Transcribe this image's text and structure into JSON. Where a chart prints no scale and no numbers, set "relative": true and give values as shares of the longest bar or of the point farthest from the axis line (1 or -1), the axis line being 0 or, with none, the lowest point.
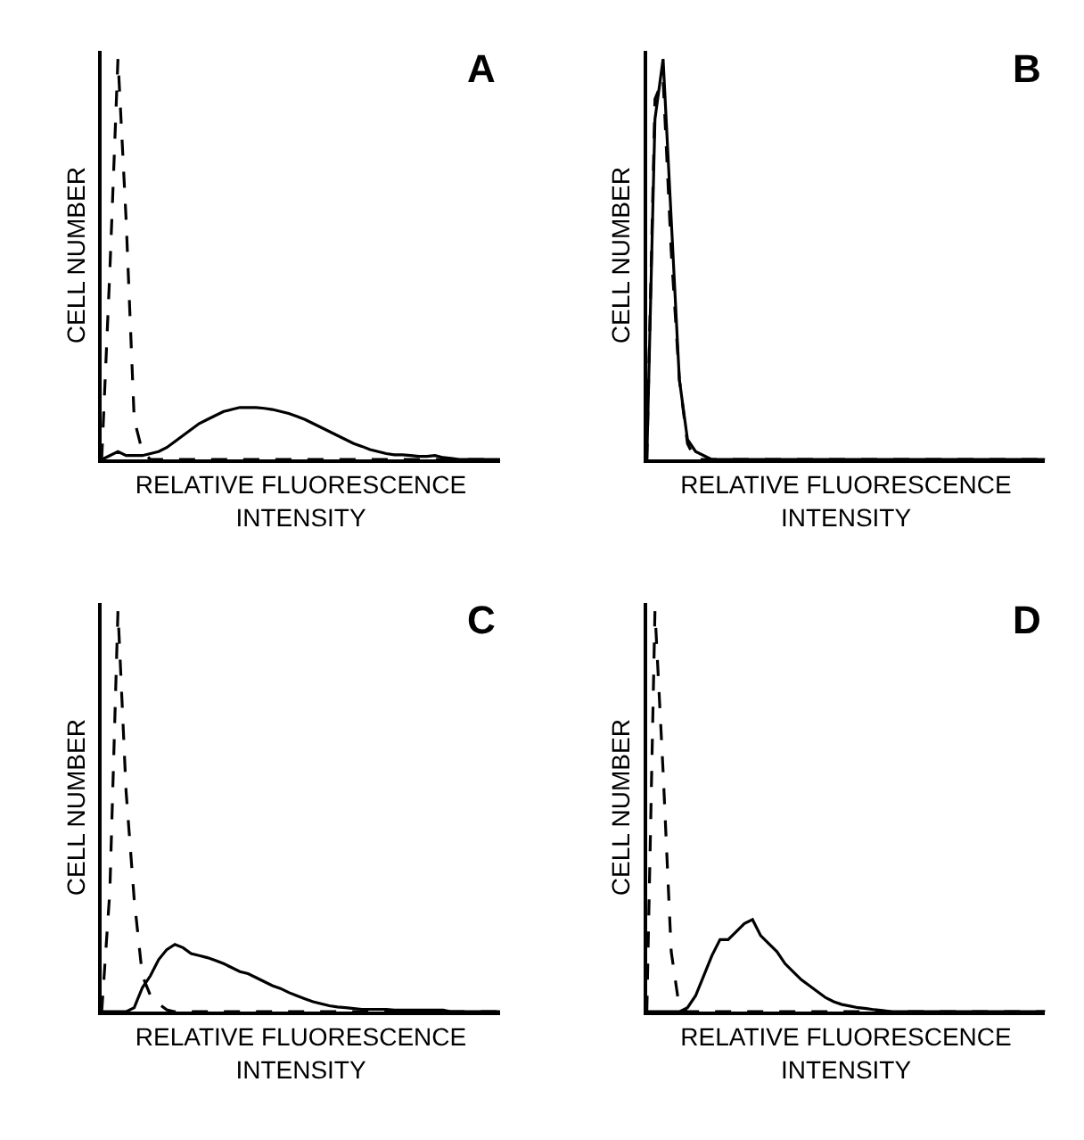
{
  "chart_data": [
    {
      "type": "line",
      "title": "A",
      "xlabel": "RELATIVE FLUORESCENCE\nINTENSITY",
      "ylabel": "CELL NUMBER",
      "relative": true,
      "marker": "none",
      "categories": [
        null,
        null,
        null,
        null,
        null,
        null,
        null,
        null,
        null,
        null,
        null,
        null,
        null,
        null,
        null,
        null,
        null,
        null,
        null,
        null,
        null,
        null,
        null,
        null,
        null,
        null,
        null,
        null,
        null,
        null,
        null,
        null,
        null,
        null,
        null,
        null,
        null,
        null,
        null,
        null,
        null,
        null,
        null,
        null,
        null,
        null,
        null,
        null,
        null,
        null
      ],
      "series": [
        {
          "color": "#000000",
          "line_style": "dashed",
          "values": [
            0,
            0.47,
            1.0,
            0.6,
            0.1,
            0.02,
            0,
            0,
            0,
            0,
            0,
            0,
            0,
            0,
            0,
            0,
            0,
            0,
            0,
            0,
            0,
            0,
            0,
            0,
            0,
            0,
            0,
            0,
            0,
            0,
            0,
            0,
            0,
            0,
            0,
            0,
            0,
            0,
            0,
            0,
            0,
            0,
            0,
            0,
            0,
            0,
            0,
            0,
            0,
            0
          ]
        },
        {
          "color": "#000000",
          "line_style": "solid",
          "values": [
            0,
            0.01,
            0.02,
            0.01,
            0.01,
            0.01,
            0.015,
            0.02,
            0.03,
            0.045,
            0.06,
            0.075,
            0.09,
            0.1,
            0.11,
            0.12,
            0.125,
            0.13,
            0.13,
            0.13,
            0.128,
            0.125,
            0.12,
            0.115,
            0.108,
            0.1,
            0.09,
            0.08,
            0.07,
            0.06,
            0.05,
            0.04,
            0.033,
            0.025,
            0.02,
            0.015,
            0.012,
            0.012,
            0.01,
            0.008,
            0.008,
            0.01,
            0.005,
            0.003,
            0,
            0,
            0,
            0,
            0,
            0
          ]
        }
      ]
    },
    {
      "type": "line",
      "title": "B",
      "xlabel": "RELATIVE FLUORESCENCE\nINTENSITY",
      "ylabel": "CELL NUMBER",
      "relative": true,
      "marker": "none",
      "categories": [
        null,
        null,
        null,
        null,
        null,
        null,
        null,
        null,
        null,
        null,
        null,
        null,
        null,
        null,
        null,
        null,
        null,
        null,
        null,
        null,
        null,
        null,
        null,
        null,
        null,
        null,
        null,
        null,
        null,
        null,
        null,
        null,
        null,
        null,
        null,
        null,
        null,
        null,
        null,
        null,
        null,
        null,
        null,
        null,
        null,
        null,
        null,
        null,
        null,
        null
      ],
      "series": [
        {
          "color": "#000000",
          "line_style": "dashed",
          "values": [
            0,
            0.9,
            0.95,
            0.52,
            0.2,
            0.04,
            0,
            0,
            0,
            0,
            0,
            0,
            0,
            0,
            0,
            0,
            0,
            0,
            0,
            0,
            0,
            0,
            0,
            0,
            0,
            0,
            0,
            0,
            0,
            0,
            0,
            0,
            0,
            0,
            0,
            0,
            0,
            0,
            0,
            0,
            0,
            0,
            0,
            0,
            0,
            0,
            0,
            0,
            0,
            0
          ]
        },
        {
          "color": "#000000",
          "line_style": "solid",
          "values": [
            0,
            0.85,
            1.0,
            0.6,
            0.2,
            0.05,
            0.02,
            0.01,
            0,
            0,
            0,
            0,
            0,
            0,
            0,
            0,
            0,
            0,
            0,
            0,
            0,
            0,
            0,
            0,
            0,
            0,
            0,
            0,
            0,
            0,
            0,
            0,
            0,
            0,
            0,
            0,
            0,
            0,
            0,
            0,
            0,
            0,
            0,
            0,
            0,
            0,
            0,
            0,
            0,
            0
          ]
        }
      ]
    },
    {
      "type": "line",
      "title": "C",
      "xlabel": "RELATIVE FLUORESCENCE\nINTENSITY",
      "ylabel": "CELL NUMBER",
      "relative": true,
      "marker": "none",
      "categories": [
        null,
        null,
        null,
        null,
        null,
        null,
        null,
        null,
        null,
        null,
        null,
        null,
        null,
        null,
        null,
        null,
        null,
        null,
        null,
        null,
        null,
        null,
        null,
        null,
        null,
        null,
        null,
        null,
        null,
        null,
        null,
        null,
        null,
        null,
        null,
        null,
        null,
        null,
        null,
        null,
        null,
        null,
        null,
        null,
        null,
        null,
        null,
        null,
        null,
        null
      ],
      "series": [
        {
          "color": "#000000",
          "line_style": "dashed",
          "values": [
            0,
            0.3,
            1.0,
            0.55,
            0.28,
            0.09,
            0.04,
            0.02,
            0.005,
            0,
            0,
            0,
            0,
            0,
            0,
            0,
            0,
            0,
            0,
            0,
            0,
            0,
            0,
            0,
            0,
            0,
            0,
            0,
            0,
            0,
            0,
            0,
            0,
            0,
            0,
            0,
            0,
            0,
            0,
            0,
            0,
            0,
            0,
            0,
            0,
            0,
            0,
            0,
            0,
            0
          ]
        },
        {
          "color": "#000000",
          "line_style": "solid",
          "values": [
            0,
            0,
            0,
            0,
            0.01,
            0.06,
            0.09,
            0.13,
            0.155,
            0.168,
            0.16,
            0.145,
            0.14,
            0.135,
            0.128,
            0.12,
            0.11,
            0.1,
            0.095,
            0.085,
            0.075,
            0.065,
            0.058,
            0.048,
            0.04,
            0.032,
            0.025,
            0.02,
            0.015,
            0.012,
            0.01,
            0.008,
            0.006,
            0.006,
            0.006,
            0.006,
            0.004,
            0.004,
            0.004,
            0.004,
            0.004,
            0.004,
            0.004,
            0,
            0,
            0,
            0,
            0,
            0,
            0
          ]
        }
      ]
    },
    {
      "type": "line",
      "title": "D",
      "xlabel": "RELATIVE FLUORESCENCE\nINTENSITY",
      "ylabel": "CELL NUMBER",
      "relative": true,
      "marker": "none",
      "categories": [
        null,
        null,
        null,
        null,
        null,
        null,
        null,
        null,
        null,
        null,
        null,
        null,
        null,
        null,
        null,
        null,
        null,
        null,
        null,
        null,
        null,
        null,
        null,
        null,
        null,
        null,
        null,
        null,
        null,
        null,
        null,
        null,
        null,
        null,
        null,
        null,
        null,
        null,
        null,
        null,
        null,
        null,
        null,
        null,
        null,
        null,
        null,
        null,
        null,
        null
      ],
      "series": [
        {
          "color": "#000000",
          "line_style": "dashed",
          "values": [
            0,
            1.0,
            0.6,
            0.15,
            0.01,
            0,
            0,
            0,
            0,
            0,
            0,
            0,
            0,
            0,
            0,
            0,
            0,
            0,
            0,
            0,
            0,
            0,
            0,
            0,
            0,
            0,
            0,
            0,
            0,
            0,
            0,
            0,
            0,
            0,
            0,
            0,
            0,
            0,
            0,
            0,
            0,
            0,
            0,
            0,
            0,
            0,
            0,
            0,
            0,
            0
          ]
        },
        {
          "color": "#000000",
          "line_style": "solid",
          "values": [
            0,
            0,
            0,
            0,
            0,
            0.01,
            0.04,
            0.09,
            0.14,
            0.18,
            0.18,
            0.2,
            0.22,
            0.23,
            0.19,
            0.17,
            0.15,
            0.12,
            0.1,
            0.08,
            0.065,
            0.05,
            0.035,
            0.025,
            0.018,
            0.014,
            0.01,
            0.008,
            0.005,
            0.003,
            0,
            0,
            0,
            0,
            0,
            0,
            0,
            0,
            0,
            0,
            0,
            0,
            0,
            0,
            0,
            0,
            0,
            0,
            0,
            0
          ]
        }
      ]
    }
  ]
}
